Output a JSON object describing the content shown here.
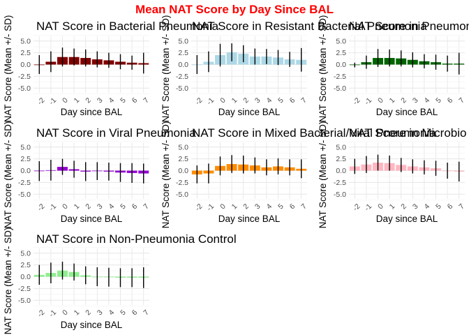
{
  "title": "Mean NAT Score by Day Since BAL",
  "title_color": "#ff0000",
  "chart_data": [
    {
      "type": "bar",
      "title": "NAT Score in Bacterial Pneumonia",
      "xlabel": "Day since BAL",
      "ylabel": "NAT Score (Mean +/- SD)",
      "categories": [
        "-2",
        "-1",
        "0",
        "1",
        "2",
        "3",
        "4",
        "5",
        "6",
        "7"
      ],
      "values": [
        0.0,
        0.6,
        1.6,
        1.6,
        1.4,
        1.1,
        0.9,
        0.6,
        0.4,
        0.3
      ],
      "error": [
        2.0,
        2.2,
        2.0,
        1.8,
        1.8,
        1.7,
        1.6,
        1.6,
        1.5,
        2.2
      ],
      "ylim": [
        -6,
        6
      ],
      "yticks": [
        "5.0",
        "2.5",
        "0.0",
        "-2.5",
        "-5.0"
      ],
      "color": "#800000",
      "grid": true
    },
    {
      "type": "bar",
      "title": "NAT Score in Resistant Bacterial Pneumonia",
      "xlabel": "Day since BAL",
      "ylabel": "NAT Score (Mean +/- SD)",
      "categories": [
        "-2",
        "-1",
        "0",
        "1",
        "2",
        "3",
        "4",
        "5",
        "6",
        "7"
      ],
      "values": [
        0.0,
        0.6,
        2.0,
        2.6,
        2.3,
        1.7,
        1.7,
        1.5,
        1.1,
        1.0
      ],
      "error": [
        2.0,
        2.2,
        2.4,
        1.9,
        1.8,
        1.7,
        1.6,
        1.6,
        1.6,
        2.5
      ],
      "ylim": [
        -6,
        6
      ],
      "yticks": [
        "5.0",
        "2.5",
        "0.0",
        "-2.5",
        "-5.0"
      ],
      "color": "#add8e6",
      "grid": true
    },
    {
      "type": "bar",
      "title": "NAT Score in Pneumonia Suscept",
      "xlabel": "Day since BAL",
      "ylabel": "NAT Score (Mean +/- SD)",
      "categories": [
        "-2",
        "-1",
        "0",
        "1",
        "2",
        "3",
        "4",
        "5",
        "6",
        "7"
      ],
      "values": [
        -0.1,
        0.5,
        1.4,
        1.4,
        1.3,
        1.0,
        0.7,
        0.5,
        0.2,
        0.2
      ],
      "error": [
        0.5,
        1.4,
        1.9,
        1.8,
        1.7,
        1.6,
        1.5,
        1.6,
        1.7,
        2.3
      ],
      "ylim": [
        -6,
        6
      ],
      "yticks": [
        "5.0",
        "2.5",
        "0.0",
        "-2.5",
        "-5.0"
      ],
      "color": "#006400",
      "grid": true
    },
    {
      "type": "bar",
      "title": "NAT Score in Viral Pneumonia",
      "xlabel": "Day since BAL",
      "ylabel": "NAT Score (Mean +/- SD)",
      "categories": [
        "-2",
        "-1",
        "0",
        "1",
        "2",
        "3",
        "4",
        "5",
        "6",
        "7"
      ],
      "values": [
        -0.1,
        0.1,
        0.8,
        0.3,
        -0.2,
        -0.1,
        -0.2,
        -0.4,
        -0.5,
        -0.6
      ],
      "error": [
        2.1,
        2.2,
        1.7,
        1.8,
        2.0,
        1.9,
        1.9,
        2.0,
        2.1,
        2.1
      ],
      "ylim": [
        -6,
        6
      ],
      "yticks": [
        "5.0",
        "2.5",
        "0.0",
        "-2.5",
        "-5.0"
      ],
      "color": "#9400d3",
      "grid": true
    },
    {
      "type": "bar",
      "title": "NAT Score in Mixed Bacterial/Viral Pneumonia",
      "xlabel": "Day since BAL",
      "ylabel": "NAT Score (Mean +/- SD)",
      "categories": [
        "-2",
        "-1",
        "0",
        "1",
        "2",
        "3",
        "4",
        "5",
        "6",
        "7"
      ],
      "values": [
        -0.8,
        -0.6,
        1.0,
        1.4,
        1.3,
        1.1,
        0.7,
        0.9,
        0.7,
        0.4
      ],
      "error": [
        1.9,
        2.1,
        2.0,
        1.9,
        1.9,
        1.7,
        1.7,
        1.7,
        1.7,
        2.0
      ],
      "ylim": [
        -6,
        6
      ],
      "yticks": [
        "5.0",
        "2.5",
        "0.0",
        "-2.5",
        "-5.0"
      ],
      "color": "#ff8c00",
      "grid": true
    },
    {
      "type": "bar",
      "title": "NAT Score in Microbio",
      "xlabel": "Day since BAL",
      "ylabel": "NAT Score (Mean +/- SD)",
      "categories": [
        "-2",
        "-1",
        "0",
        "1",
        "2",
        "3",
        "4",
        "5",
        "6",
        "7"
      ],
      "values": [
        0.9,
        1.3,
        1.7,
        1.6,
        1.2,
        0.9,
        0.7,
        0.5,
        0.0,
        -0.2
      ],
      "error": [
        1.6,
        1.8,
        1.7,
        1.6,
        1.5,
        1.5,
        1.5,
        1.6,
        1.7,
        2.1
      ],
      "ylim": [
        -6,
        6
      ],
      "yticks": [
        "5.0",
        "2.5",
        "0.0",
        "-2.5",
        "-5.0"
      ],
      "color": "#ffb6c1",
      "grid": true
    },
    {
      "type": "bar",
      "title": "NAT Score in Non-Pneumonia Control",
      "xlabel": "Day since BAL",
      "ylabel": "NAT Score (Mean +/- SD)",
      "categories": [
        "-2",
        "-1",
        "0",
        "1",
        "2",
        "3",
        "4",
        "5",
        "6",
        "7"
      ],
      "values": [
        0.4,
        0.8,
        1.3,
        1.0,
        0.3,
        0.0,
        -0.1,
        -0.2,
        -0.2,
        -0.2
      ],
      "error": [
        2.1,
        2.2,
        1.9,
        1.8,
        1.9,
        2.0,
        2.0,
        2.0,
        2.0,
        2.2
      ],
      "ylim": [
        -6,
        6
      ],
      "yticks": [
        "5.0",
        "2.5",
        "0.0",
        "-2.5",
        "-5.0"
      ],
      "color": "#90ee90",
      "grid": true
    }
  ]
}
